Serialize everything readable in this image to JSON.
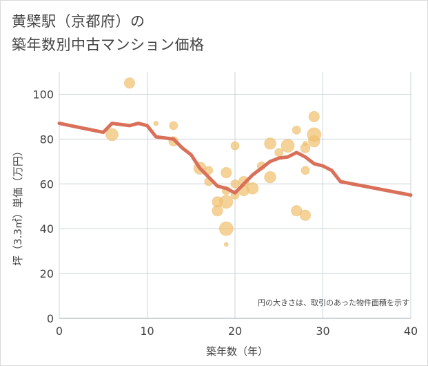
{
  "title_lines": [
    "黄檗駅（京都府）の",
    "築年数別中古マンション価格"
  ],
  "chart_data": {
    "type": "scatter",
    "xlabel": "築年数（年）",
    "ylabel": "坪（3.3㎡）単価（万円）",
    "xlim": [
      0,
      40
    ],
    "ylim": [
      0,
      110
    ],
    "x_ticks": [
      0,
      10,
      20,
      30,
      40
    ],
    "y_ticks": [
      0,
      20,
      40,
      60,
      80,
      100
    ],
    "grid": true,
    "annotation": "円の大きさは、取引のあった物件面積を示す",
    "bubble_color": "#f0c070",
    "line_color": "#d9705a",
    "bubbles": [
      {
        "x": 6,
        "y": 82,
        "size": 3
      },
      {
        "x": 8,
        "y": 105,
        "size": 2
      },
      {
        "x": 11,
        "y": 87,
        "size": 0.5
      },
      {
        "x": 13,
        "y": 86,
        "size": 1
      },
      {
        "x": 13,
        "y": 79,
        "size": 1.5
      },
      {
        "x": 16,
        "y": 67,
        "size": 3
      },
      {
        "x": 17,
        "y": 66,
        "size": 1
      },
      {
        "x": 17,
        "y": 61,
        "size": 1
      },
      {
        "x": 18,
        "y": 52,
        "size": 2
      },
      {
        "x": 18,
        "y": 48,
        "size": 2
      },
      {
        "x": 19,
        "y": 65,
        "size": 2
      },
      {
        "x": 19,
        "y": 57,
        "size": 1
      },
      {
        "x": 19,
        "y": 52,
        "size": 3.5
      },
      {
        "x": 19,
        "y": 40,
        "size": 4
      },
      {
        "x": 19,
        "y": 33,
        "size": 0.4
      },
      {
        "x": 20,
        "y": 77,
        "size": 1
      },
      {
        "x": 20,
        "y": 60,
        "size": 1
      },
      {
        "x": 20,
        "y": 55,
        "size": 1
      },
      {
        "x": 21,
        "y": 61,
        "size": 2
      },
      {
        "x": 21,
        "y": 57,
        "size": 2
      },
      {
        "x": 22,
        "y": 58,
        "size": 2.5
      },
      {
        "x": 23,
        "y": 68,
        "size": 1
      },
      {
        "x": 24,
        "y": 78,
        "size": 2.5
      },
      {
        "x": 24,
        "y": 63,
        "size": 2.5
      },
      {
        "x": 25,
        "y": 74,
        "size": 1
      },
      {
        "x": 26,
        "y": 77,
        "size": 3.5
      },
      {
        "x": 27,
        "y": 84,
        "size": 1
      },
      {
        "x": 27,
        "y": 48,
        "size": 2
      },
      {
        "x": 28,
        "y": 78,
        "size": 0.5
      },
      {
        "x": 28,
        "y": 76,
        "size": 1.5
      },
      {
        "x": 28,
        "y": 66,
        "size": 1
      },
      {
        "x": 28,
        "y": 46,
        "size": 2
      },
      {
        "x": 29,
        "y": 90,
        "size": 2
      },
      {
        "x": 29,
        "y": 79,
        "size": 2.5
      },
      {
        "x": 29,
        "y": 82,
        "size": 4
      }
    ],
    "line": {
      "x": [
        0,
        5,
        6,
        8,
        9,
        10,
        11,
        13,
        14,
        15,
        16,
        17,
        18,
        19,
        20,
        21,
        22,
        23,
        24,
        25,
        26,
        27,
        28,
        29,
        30,
        31,
        32,
        40
      ],
      "y": [
        87,
        83,
        87,
        86,
        87,
        86,
        81,
        80,
        76,
        73,
        67,
        63,
        59,
        58,
        56,
        60,
        64,
        67,
        70,
        71.5,
        72,
        74,
        72,
        69,
        68,
        66,
        61,
        55
      ]
    }
  }
}
